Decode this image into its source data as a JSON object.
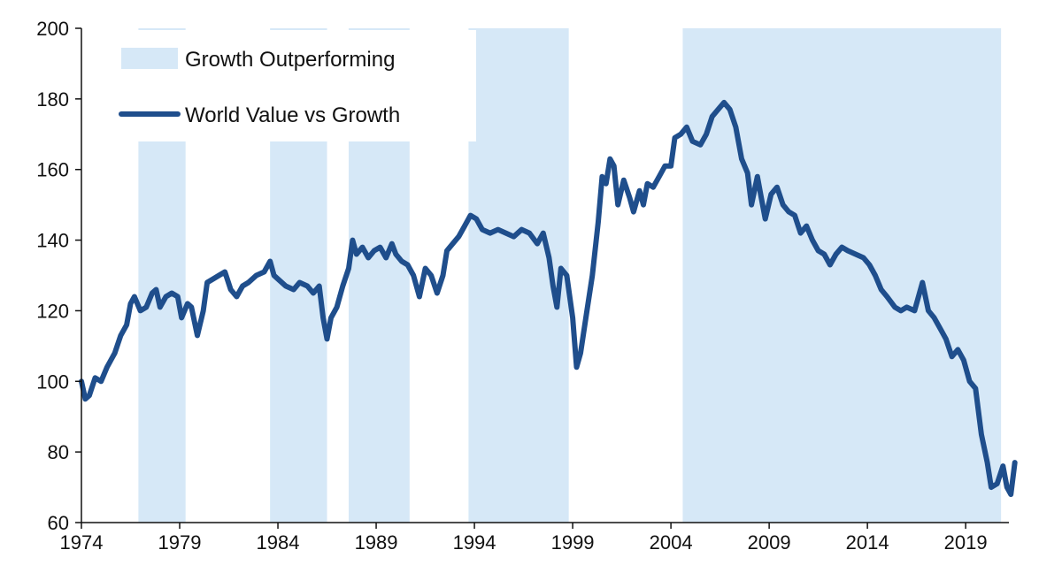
{
  "chart_data": {
    "type": "line",
    "title": "",
    "xlabel": "",
    "ylabel": "",
    "xlim": [
      1974,
      2021.2
    ],
    "ylim": [
      60,
      200
    ],
    "grid": false,
    "legend_position": "top-left",
    "x_ticks": [
      "1974",
      "1979",
      "1984",
      "1989",
      "1994",
      "1999",
      "2004",
      "2009",
      "2014",
      "2019"
    ],
    "y_ticks": [
      "60",
      "80",
      "100",
      "120",
      "140",
      "160",
      "180",
      "200"
    ],
    "colors": {
      "line": "#1f4e8c",
      "shade": "#d6e8f7",
      "axis": "#111111"
    },
    "shaded_periods": {
      "name": "Growth Outperforming",
      "ranges": [
        [
          1976.9,
          1979.3
        ],
        [
          1983.6,
          1986.5
        ],
        [
          1987.6,
          1990.7
        ],
        [
          1993.7,
          1998.8
        ],
        [
          2004.6,
          2020.8
        ]
      ]
    },
    "series": [
      {
        "name": "World Value vs Growth",
        "points": [
          [
            1974.0,
            100
          ],
          [
            1974.2,
            95
          ],
          [
            1974.4,
            96
          ],
          [
            1974.7,
            101
          ],
          [
            1975.0,
            100
          ],
          [
            1975.3,
            104
          ],
          [
            1975.7,
            108
          ],
          [
            1976.0,
            113
          ],
          [
            1976.3,
            116
          ],
          [
            1976.5,
            122
          ],
          [
            1976.7,
            124
          ],
          [
            1977.0,
            120
          ],
          [
            1977.3,
            121
          ],
          [
            1977.6,
            125
          ],
          [
            1977.8,
            126
          ],
          [
            1978.0,
            121
          ],
          [
            1978.3,
            124
          ],
          [
            1978.6,
            125
          ],
          [
            1978.9,
            124
          ],
          [
            1979.1,
            118
          ],
          [
            1979.4,
            122
          ],
          [
            1979.6,
            121
          ],
          [
            1979.9,
            113
          ],
          [
            1980.2,
            120
          ],
          [
            1980.4,
            128
          ],
          [
            1980.7,
            129
          ],
          [
            1981.0,
            130
          ],
          [
            1981.3,
            131
          ],
          [
            1981.6,
            126
          ],
          [
            1981.9,
            124
          ],
          [
            1982.2,
            127
          ],
          [
            1982.5,
            128
          ],
          [
            1982.9,
            130
          ],
          [
            1983.3,
            131
          ],
          [
            1983.6,
            134
          ],
          [
            1983.8,
            130
          ],
          [
            1984.0,
            129
          ],
          [
            1984.4,
            127
          ],
          [
            1984.8,
            126
          ],
          [
            1985.1,
            128
          ],
          [
            1985.5,
            127
          ],
          [
            1985.8,
            125
          ],
          [
            1986.1,
            127
          ],
          [
            1986.3,
            118
          ],
          [
            1986.5,
            112
          ],
          [
            1986.7,
            118
          ],
          [
            1987.0,
            121
          ],
          [
            1987.3,
            127
          ],
          [
            1987.6,
            132
          ],
          [
            1987.8,
            140
          ],
          [
            1988.0,
            136
          ],
          [
            1988.3,
            138
          ],
          [
            1988.6,
            135
          ],
          [
            1988.9,
            137
          ],
          [
            1989.2,
            138
          ],
          [
            1989.5,
            135
          ],
          [
            1989.8,
            139
          ],
          [
            1990.0,
            136
          ],
          [
            1990.3,
            134
          ],
          [
            1990.6,
            133
          ],
          [
            1990.9,
            130
          ],
          [
            1991.2,
            124
          ],
          [
            1991.5,
            132
          ],
          [
            1991.8,
            130
          ],
          [
            1992.1,
            125
          ],
          [
            1992.4,
            130
          ],
          [
            1992.6,
            137
          ],
          [
            1992.9,
            139
          ],
          [
            1993.2,
            141
          ],
          [
            1993.5,
            144
          ],
          [
            1993.8,
            147
          ],
          [
            1994.1,
            146
          ],
          [
            1994.4,
            143
          ],
          [
            1994.8,
            142
          ],
          [
            1995.2,
            143
          ],
          [
            1995.6,
            142
          ],
          [
            1996.0,
            141
          ],
          [
            1996.4,
            143
          ],
          [
            1996.8,
            142
          ],
          [
            1997.2,
            139
          ],
          [
            1997.5,
            142
          ],
          [
            1997.8,
            135
          ],
          [
            1998.0,
            127
          ],
          [
            1998.2,
            121
          ],
          [
            1998.4,
            132
          ],
          [
            1998.7,
            130
          ],
          [
            1999.0,
            118
          ],
          [
            1999.2,
            104
          ],
          [
            1999.4,
            108
          ],
          [
            1999.7,
            119
          ],
          [
            2000.0,
            130
          ],
          [
            2000.3,
            145
          ],
          [
            2000.5,
            158
          ],
          [
            2000.7,
            156
          ],
          [
            2000.9,
            163
          ],
          [
            2001.1,
            161
          ],
          [
            2001.3,
            150
          ],
          [
            2001.6,
            157
          ],
          [
            2001.9,
            152
          ],
          [
            2002.1,
            148
          ],
          [
            2002.4,
            154
          ],
          [
            2002.6,
            150
          ],
          [
            2002.8,
            156
          ],
          [
            2003.1,
            155
          ],
          [
            2003.4,
            158
          ],
          [
            2003.7,
            161
          ],
          [
            2004.0,
            161
          ],
          [
            2004.2,
            169
          ],
          [
            2004.5,
            170
          ],
          [
            2004.8,
            172
          ],
          [
            2005.1,
            168
          ],
          [
            2005.5,
            167
          ],
          [
            2005.8,
            170
          ],
          [
            2006.1,
            175
          ],
          [
            2006.4,
            177
          ],
          [
            2006.7,
            179
          ],
          [
            2007.0,
            177
          ],
          [
            2007.3,
            172
          ],
          [
            2007.6,
            163
          ],
          [
            2007.9,
            159
          ],
          [
            2008.1,
            150
          ],
          [
            2008.4,
            158
          ],
          [
            2008.6,
            152
          ],
          [
            2008.8,
            146
          ],
          [
            2009.1,
            153
          ],
          [
            2009.4,
            155
          ],
          [
            2009.7,
            150
          ],
          [
            2010.0,
            148
          ],
          [
            2010.3,
            147
          ],
          [
            2010.6,
            142
          ],
          [
            2010.9,
            144
          ],
          [
            2011.2,
            140
          ],
          [
            2011.5,
            137
          ],
          [
            2011.8,
            136
          ],
          [
            2012.1,
            133
          ],
          [
            2012.4,
            136
          ],
          [
            2012.7,
            138
          ],
          [
            2013.0,
            137
          ],
          [
            2013.4,
            136
          ],
          [
            2013.8,
            135
          ],
          [
            2014.1,
            133
          ],
          [
            2014.4,
            130
          ],
          [
            2014.7,
            126
          ],
          [
            2015.0,
            124
          ],
          [
            2015.4,
            121
          ],
          [
            2015.7,
            120
          ],
          [
            2016.0,
            121
          ],
          [
            2016.4,
            120
          ],
          [
            2016.8,
            128
          ],
          [
            2017.1,
            120
          ],
          [
            2017.4,
            118
          ],
          [
            2017.7,
            115
          ],
          [
            2018.0,
            112
          ],
          [
            2018.3,
            107
          ],
          [
            2018.6,
            109
          ],
          [
            2018.9,
            106
          ],
          [
            2019.2,
            100
          ],
          [
            2019.5,
            98
          ],
          [
            2019.8,
            85
          ],
          [
            2020.1,
            77
          ],
          [
            2020.3,
            70
          ],
          [
            2020.6,
            71
          ],
          [
            2020.9,
            76
          ],
          [
            2021.1,
            70
          ],
          [
            2021.3,
            68
          ],
          [
            2021.5,
            77
          ]
        ]
      }
    ]
  }
}
